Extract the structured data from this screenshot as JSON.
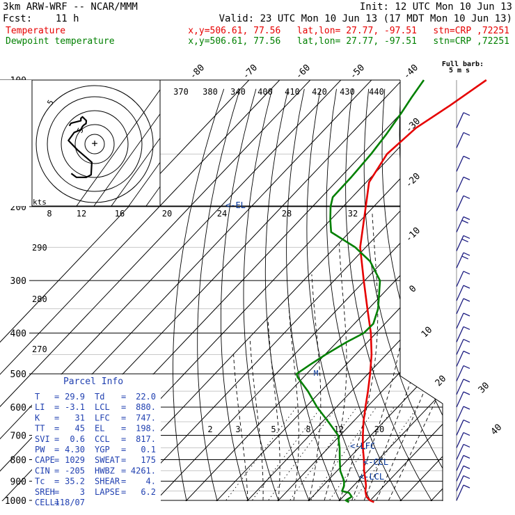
{
  "header": {
    "model": "3km ARW-WRF -- NCAR/MMM",
    "init": "Init: 12 UTC Mon 10 Jun 13",
    "fcst": "Fcst:    11 h",
    "valid": "Valid: 23 UTC Mon 10 Jun 13 (17 MDT Mon 10 Jun 13)",
    "temp_label": "Temperature",
    "dew_label": "Dewpoint temperature",
    "temp_info": "x,y=506.61, 77.56   lat,lon= 27.77, -97.51   stn=CRP ,72251",
    "dew_info": "x,y=506.61, 77.56   lat,lon= 27.77, -97.51   stn=CRP ,72251",
    "temp_color": "#e60000",
    "dew_color": "#008000"
  },
  "barb_legend": [
    "Full barb:",
    "5 m s"
  ],
  "hodograph": {
    "kts_label": "kts",
    "ring_labels": [
      "5",
      "5"
    ],
    "speed_labels": [
      "8",
      "12",
      "16",
      "20",
      "24",
      "28",
      "32"
    ]
  },
  "theta_labels": [
    "370",
    "380",
    "340",
    "400",
    "410",
    "420",
    "430",
    "440"
  ],
  "theta_side_labels": [
    "290",
    "280",
    "270"
  ],
  "mixing_ratio_labels": [
    "2",
    "3",
    "5",
    "8",
    "12",
    "20"
  ],
  "level_labels": {
    "el": "<-EL",
    "lfc": "<-LFC",
    "ccl": "<-CCL",
    "lcl": "<-LCL"
  },
  "parcel_info": {
    "title": "Parcel Info",
    "rows": [
      [
        "T",
        "=",
        "29.9",
        "Td",
        "=",
        "22.0"
      ],
      [
        "LI",
        "=",
        "-3.1",
        "LCL",
        "=",
        "880."
      ],
      [
        "K",
        "=",
        "31",
        "LFC",
        "=",
        "747."
      ],
      [
        "TT",
        "=",
        "45",
        "EL",
        "=",
        "198."
      ],
      [
        "SVI",
        "=",
        "0.6",
        "CCL",
        "=",
        "817."
      ],
      [
        "PW",
        "=",
        "4.30",
        "YGP",
        "=",
        "0.1"
      ],
      [
        "CAPE",
        "=",
        "1029",
        "SWEAT",
        "=",
        "175"
      ],
      [
        "CIN",
        "=",
        "-205",
        "HWBZ",
        "=",
        "4261."
      ],
      [
        "Tc",
        "=",
        "35.2",
        "SHEAR",
        "=",
        "4."
      ],
      [
        "SREH",
        "=",
        "3",
        "LAPSE",
        "=",
        "6.2"
      ],
      [
        "CELL",
        "=",
        "118/07",
        "",
        "",
        ""
      ]
    ]
  },
  "chart_data": {
    "type": "line",
    "title": "",
    "xlabel": "",
    "ylabel": "",
    "pressure_ticks": [
      100,
      200,
      300,
      400,
      500,
      600,
      700,
      800,
      900,
      1000
    ],
    "isotherm_labels": [
      -80,
      -70,
      -60,
      -50,
      -40,
      -30,
      -20,
      -10,
      0,
      10,
      20,
      30,
      40
    ],
    "series": [
      {
        "name": "Temperature",
        "color": "#e60000",
        "pressure": [
          1010,
          1000,
          980,
          950,
          925,
          900,
          850,
          800,
          750,
          700,
          650,
          600,
          550,
          500,
          450,
          400,
          350,
          300,
          250,
          200,
          175,
          150,
          130,
          115,
          100
        ],
        "values": [
          31.8,
          29.9,
          27.6,
          25.5,
          24.2,
          22.5,
          18.8,
          15.3,
          11.3,
          7.4,
          3.4,
          -0.5,
          -4.6,
          -9.3,
          -14.8,
          -21.7,
          -30.4,
          -40.3,
          -51.8,
          -62.6,
          -69.1,
          -72.0,
          -70.6,
          -66.5,
          -62.5
        ]
      },
      {
        "name": "Dewpoint temperature",
        "color": "#008000",
        "pressure": [
          1010,
          1000,
          980,
          960,
          950,
          925,
          900,
          850,
          800,
          750,
          700,
          650,
          600,
          550,
          510,
          500,
          475,
          450,
          420,
          400,
          380,
          350,
          300,
          270,
          250,
          230,
          215,
          200,
          190,
          170,
          150,
          135,
          120,
          110,
          100
        ],
        "values": [
          23.6,
          22.0,
          22.8,
          20.8,
          17.9,
          17.0,
          15.5,
          11.0,
          7.4,
          3.7,
          -0.7,
          -8.1,
          -16.3,
          -24.2,
          -31.8,
          -33.3,
          -31.7,
          -29.8,
          -26.8,
          -24.0,
          -23.8,
          -26.9,
          -35.0,
          -44.2,
          -53.4,
          -66.0,
          -70.1,
          -74.1,
          -76.3,
          -76.5,
          -77.2,
          -78.3,
          -80.0,
          -81.5,
          -82.9
        ]
      }
    ],
    "hodograph_kts": [
      [
        -7.3,
        -9.2
      ],
      [
        -5.7,
        -10.4
      ],
      [
        -2.6,
        -10.4
      ],
      [
        -1.1,
        -9.6
      ],
      [
        -0.9,
        -5.7
      ],
      [
        -5.4,
        -1.8
      ],
      [
        -8.2,
        1.1
      ],
      [
        -6.4,
        3.6
      ],
      [
        -4.3,
        4.5
      ],
      [
        -3.8,
        5.5
      ],
      [
        -3.3,
        6.0
      ],
      [
        -2.7,
        6.4
      ],
      [
        -2.6,
        7.3
      ],
      [
        -3.8,
        8.5
      ],
      [
        -4.3,
        8.0
      ],
      [
        -4.3,
        7.3
      ],
      [
        -7.4,
        6.5
      ],
      [
        -7.9,
        5.7
      ]
    ],
    "wind_barbs_ms": [
      {
        "p": 130,
        "speed": 5
      },
      {
        "p": 145,
        "speed": 5
      },
      {
        "p": 165,
        "speed": 5
      },
      {
        "p": 185,
        "speed": 5
      },
      {
        "p": 205,
        "speed": 7
      },
      {
        "p": 230,
        "speed": 8
      },
      {
        "p": 255,
        "speed": 8
      },
      {
        "p": 280,
        "speed": 8
      },
      {
        "p": 310,
        "speed": 7
      },
      {
        "p": 335,
        "speed": 6
      },
      {
        "p": 360,
        "speed": 6
      },
      {
        "p": 390,
        "speed": 6
      },
      {
        "p": 420,
        "speed": 6
      },
      {
        "p": 450,
        "speed": 5
      },
      {
        "p": 480,
        "speed": 5
      },
      {
        "p": 520,
        "speed": 5
      },
      {
        "p": 560,
        "speed": 4
      },
      {
        "p": 600,
        "speed": 4
      },
      {
        "p": 650,
        "speed": 3
      },
      {
        "p": 700,
        "speed": 3
      },
      {
        "p": 750,
        "speed": 3
      },
      {
        "p": 800,
        "speed": 3
      },
      {
        "p": 850,
        "speed": 3
      },
      {
        "p": 900,
        "speed": 3
      },
      {
        "p": 950,
        "speed": 4
      },
      {
        "p": 1000,
        "speed": 4
      }
    ]
  }
}
